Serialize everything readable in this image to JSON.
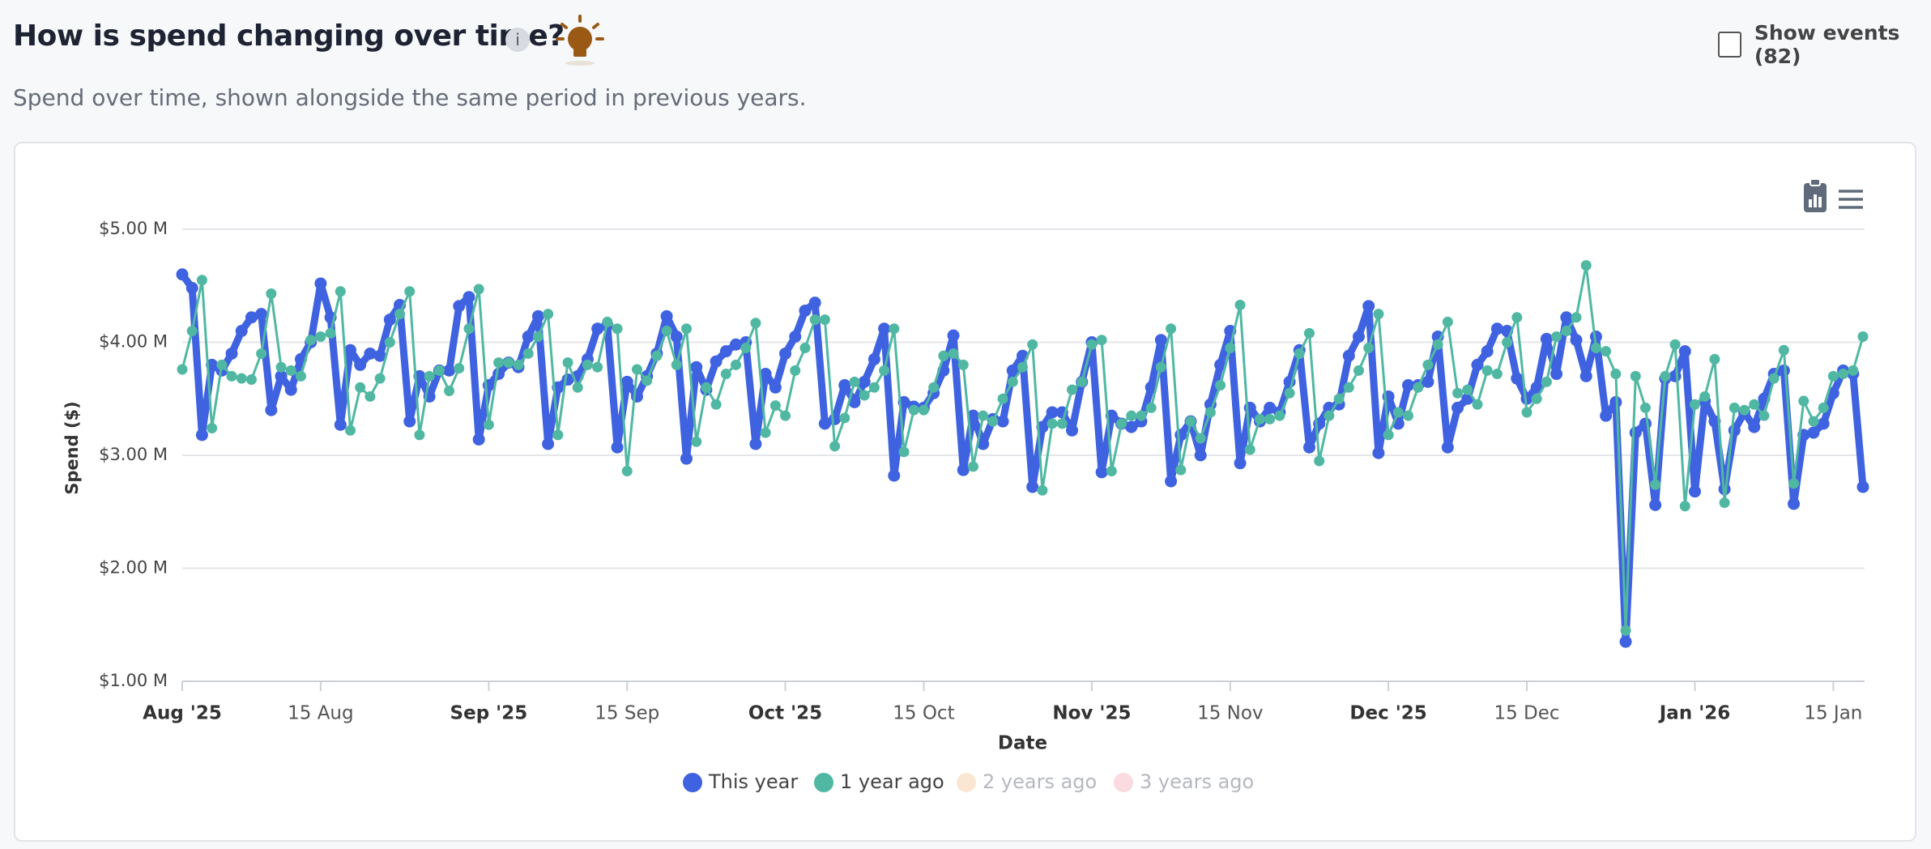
{
  "title": "How is spend changing over time?",
  "info_icon": "i",
  "subtitle": "Spend over time, shown alongside the same period in previous years.",
  "show_events_label": "Show events (82)",
  "chart_data": {
    "type": "line",
    "x_label": "Date",
    "y_label": "Spend ($)",
    "grid": true,
    "legend": "bottom",
    "xlim": [
      "2025-08-01",
      "2026-01-18"
    ],
    "ylim": [
      1,
      5
    ],
    "yticks": [
      {
        "value": 1,
        "label": "$1.00 M"
      },
      {
        "value": 2,
        "label": "$2.00 M"
      },
      {
        "value": 3,
        "label": "$3.00 M"
      },
      {
        "value": 4,
        "label": "$4.00 M"
      },
      {
        "value": 5,
        "label": "$5.00 M"
      }
    ],
    "xticks": [
      {
        "value": "2025-08-01",
        "label": "Aug '25"
      },
      {
        "value": "2025-08-15",
        "label": "15 Aug"
      },
      {
        "value": "2025-09-01",
        "label": "Sep '25"
      },
      {
        "value": "2025-09-15",
        "label": "15 Sep"
      },
      {
        "value": "2025-10-01",
        "label": "Oct '25"
      },
      {
        "value": "2025-10-15",
        "label": "15 Oct"
      },
      {
        "value": "2025-11-01",
        "label": "Nov '25"
      },
      {
        "value": "2025-11-15",
        "label": "15 Nov"
      },
      {
        "value": "2025-12-01",
        "label": "Dec '25"
      },
      {
        "value": "2025-12-15",
        "label": "15 Dec"
      },
      {
        "value": "2026-01-01",
        "label": "Jan '26"
      },
      {
        "value": "2026-01-15",
        "label": "15 Jan"
      }
    ],
    "x": [
      "2025-08-01",
      "2025-08-02",
      "2025-08-03",
      "2025-08-04",
      "2025-08-05",
      "2025-08-06",
      "2025-08-07",
      "2025-08-08",
      "2025-08-09",
      "2025-08-10",
      "2025-08-11",
      "2025-08-12",
      "2025-08-13",
      "2025-08-14",
      "2025-08-15",
      "2025-08-16",
      "2025-08-17",
      "2025-08-18",
      "2025-08-19",
      "2025-08-20",
      "2025-08-21",
      "2025-08-22",
      "2025-08-23",
      "2025-08-24",
      "2025-08-25",
      "2025-08-26",
      "2025-08-27",
      "2025-08-28",
      "2025-08-29",
      "2025-08-30",
      "2025-08-31",
      "2025-09-01",
      "2025-09-02",
      "2025-09-03",
      "2025-09-04",
      "2025-09-05",
      "2025-09-06",
      "2025-09-07",
      "2025-09-08",
      "2025-09-09",
      "2025-09-10",
      "2025-09-11",
      "2025-09-12",
      "2025-09-13",
      "2025-09-14",
      "2025-09-15",
      "2025-09-16",
      "2025-09-17",
      "2025-09-18",
      "2025-09-19",
      "2025-09-20",
      "2025-09-21",
      "2025-09-22",
      "2025-09-23",
      "2025-09-24",
      "2025-09-25",
      "2025-09-26",
      "2025-09-27",
      "2025-09-28",
      "2025-09-29",
      "2025-09-30",
      "2025-10-01",
      "2025-10-02",
      "2025-10-03",
      "2025-10-04",
      "2025-10-05",
      "2025-10-06",
      "2025-10-07",
      "2025-10-08",
      "2025-10-09",
      "2025-10-10",
      "2025-10-11",
      "2025-10-12",
      "2025-10-13",
      "2025-10-14",
      "2025-10-15",
      "2025-10-16",
      "2025-10-17",
      "2025-10-18",
      "2025-10-19",
      "2025-10-20",
      "2025-10-21",
      "2025-10-22",
      "2025-10-23",
      "2025-10-24",
      "2025-10-25",
      "2025-10-26",
      "2025-10-27",
      "2025-10-28",
      "2025-10-29",
      "2025-10-30",
      "2025-10-31",
      "2025-11-01",
      "2025-11-02",
      "2025-11-03",
      "2025-11-04",
      "2025-11-05",
      "2025-11-06",
      "2025-11-07",
      "2025-11-08",
      "2025-11-09",
      "2025-11-10",
      "2025-11-11",
      "2025-11-12",
      "2025-11-13",
      "2025-11-14",
      "2025-11-15",
      "2025-11-16",
      "2025-11-17",
      "2025-11-18",
      "2025-11-19",
      "2025-11-20",
      "2025-11-21",
      "2025-11-22",
      "2025-11-23",
      "2025-11-24",
      "2025-11-25",
      "2025-11-26",
      "2025-11-27",
      "2025-11-28",
      "2025-11-29",
      "2025-11-30",
      "2025-12-01",
      "2025-12-02",
      "2025-12-03",
      "2025-12-04",
      "2025-12-05",
      "2025-12-06",
      "2025-12-07",
      "2025-12-08",
      "2025-12-09",
      "2025-12-10",
      "2025-12-11",
      "2025-12-12",
      "2025-12-13",
      "2025-12-14",
      "2025-12-15",
      "2025-12-16",
      "2025-12-17",
      "2025-12-18",
      "2025-12-19",
      "2025-12-20",
      "2025-12-21",
      "2025-12-22",
      "2025-12-23",
      "2025-12-24",
      "2025-12-25",
      "2025-12-26",
      "2025-12-27",
      "2025-12-28",
      "2025-12-29",
      "2025-12-30",
      "2025-12-31",
      "2026-01-01",
      "2026-01-02",
      "2026-01-03",
      "2026-01-04",
      "2026-01-05",
      "2026-01-06",
      "2026-01-07",
      "2026-01-08",
      "2026-01-09",
      "2026-01-10",
      "2026-01-11",
      "2026-01-12",
      "2026-01-13",
      "2026-01-14",
      "2026-01-15",
      "2026-01-16",
      "2026-01-17",
      "2026-01-18"
    ],
    "series": [
      {
        "name": "This year",
        "color": "#3f63e0",
        "line_width": 9,
        "values": [
          4.6,
          4.48,
          3.18,
          3.8,
          3.75,
          3.9,
          4.1,
          4.22,
          4.25,
          3.4,
          3.7,
          3.58,
          3.85,
          4.0,
          4.52,
          4.22,
          3.27,
          3.93,
          3.8,
          3.9,
          3.88,
          4.2,
          4.33,
          3.3,
          3.7,
          3.52,
          3.75,
          3.75,
          4.32,
          4.4,
          3.14,
          3.62,
          3.72,
          3.82,
          3.78,
          4.05,
          4.23,
          3.1,
          3.6,
          3.67,
          3.7,
          3.85,
          4.12,
          4.15,
          3.07,
          3.65,
          3.52,
          3.7,
          3.9,
          4.23,
          4.05,
          2.97,
          3.78,
          3.58,
          3.83,
          3.92,
          3.98,
          4.0,
          3.1,
          3.72,
          3.6,
          3.9,
          4.05,
          4.28,
          4.35,
          3.28,
          3.32,
          3.62,
          3.47,
          3.65,
          3.85,
          4.12,
          2.82,
          3.47,
          3.43,
          3.42,
          3.55,
          3.75,
          4.06,
          2.87,
          3.35,
          3.1,
          3.32,
          3.3,
          3.75,
          3.88,
          2.72,
          3.25,
          3.38,
          3.38,
          3.22,
          3.65,
          4.0,
          2.85,
          3.35,
          3.28,
          3.25,
          3.3,
          3.6,
          4.02,
          2.77,
          3.18,
          3.3,
          3.0,
          3.45,
          3.8,
          4.1,
          2.93,
          3.42,
          3.3,
          3.42,
          3.38,
          3.65,
          3.93,
          3.07,
          3.28,
          3.42,
          3.45,
          3.88,
          4.05,
          4.32,
          3.02,
          3.52,
          3.28,
          3.62,
          3.62,
          3.65,
          4.05,
          3.07,
          3.42,
          3.5,
          3.8,
          3.92,
          4.12,
          4.1,
          3.68,
          3.5,
          3.6,
          4.03,
          3.72,
          4.22,
          4.02,
          3.7,
          4.05,
          3.35,
          3.47,
          1.35,
          3.2,
          3.28,
          2.56,
          3.68,
          3.7,
          3.92,
          2.68,
          3.48,
          3.3,
          2.7,
          3.22,
          3.38,
          3.25,
          3.5,
          3.72,
          3.75,
          2.57,
          3.18,
          3.2,
          3.28,
          3.55,
          3.75,
          3.72,
          2.72
        ]
      },
      {
        "name": "1 year ago",
        "color": "#50b8a2",
        "line_width": 3,
        "values": [
          3.76,
          4.1,
          4.55,
          3.24,
          3.8,
          3.7,
          3.68,
          3.67,
          3.9,
          4.43,
          3.78,
          3.75,
          3.7,
          4.02,
          4.05,
          4.08,
          4.45,
          3.22,
          3.6,
          3.52,
          3.68,
          4.0,
          4.25,
          4.45,
          3.18,
          3.7,
          3.75,
          3.57,
          3.77,
          4.12,
          4.47,
          3.27,
          3.82,
          3.82,
          3.8,
          3.9,
          4.05,
          4.25,
          3.18,
          3.82,
          3.6,
          3.8,
          3.78,
          4.18,
          4.12,
          2.86,
          3.76,
          3.66,
          3.88,
          4.1,
          3.8,
          4.12,
          3.12,
          3.6,
          3.45,
          3.72,
          3.8,
          3.95,
          4.17,
          3.2,
          3.44,
          3.35,
          3.75,
          3.95,
          4.2,
          4.2,
          3.08,
          3.33,
          3.65,
          3.53,
          3.6,
          3.75,
          4.12,
          3.03,
          3.4,
          3.4,
          3.6,
          3.88,
          3.9,
          3.8,
          2.9,
          3.35,
          3.3,
          3.5,
          3.65,
          3.78,
          3.98,
          2.69,
          3.28,
          3.28,
          3.58,
          3.65,
          3.98,
          4.02,
          2.86,
          3.28,
          3.35,
          3.35,
          3.42,
          3.78,
          4.12,
          2.87,
          3.3,
          3.15,
          3.38,
          3.62,
          3.95,
          4.33,
          3.05,
          3.32,
          3.32,
          3.35,
          3.55,
          3.9,
          4.08,
          2.95,
          3.35,
          3.5,
          3.6,
          3.75,
          3.95,
          4.25,
          3.18,
          3.38,
          3.35,
          3.6,
          3.8,
          3.98,
          4.18,
          3.55,
          3.58,
          3.45,
          3.75,
          3.72,
          4.0,
          4.22,
          3.38,
          3.5,
          3.65,
          4.05,
          4.1,
          4.22,
          4.68,
          3.95,
          3.92,
          3.72,
          1.45,
          3.7,
          3.42,
          2.74,
          3.7,
          3.98,
          2.55,
          3.45,
          3.52,
          3.85,
          2.58,
          3.42,
          3.4,
          3.45,
          3.35,
          3.68,
          3.93,
          2.75,
          3.48,
          3.3,
          3.42,
          3.7,
          3.72,
          3.75,
          4.05
        ]
      }
    ],
    "hidden_series": [
      {
        "name": "2 years ago",
        "color": "#fbe6d4"
      },
      {
        "name": "3 years ago",
        "color": "#fadbdf"
      }
    ]
  }
}
